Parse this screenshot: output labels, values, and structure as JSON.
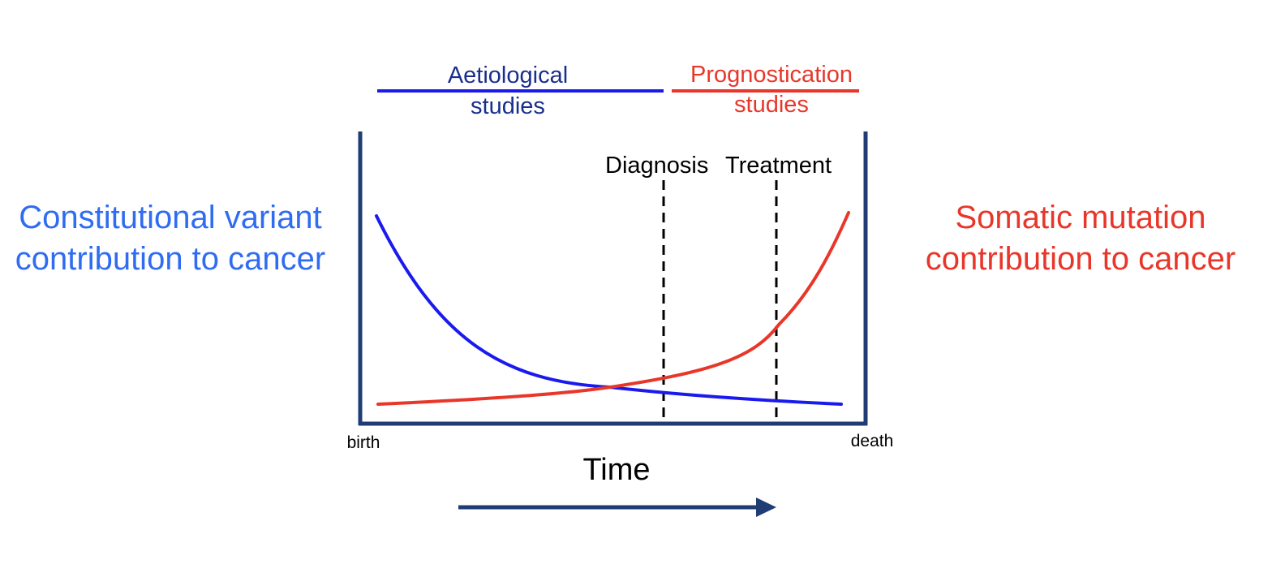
{
  "colors": {
    "blue_curve": "#1a1aee",
    "red_curve": "#e8372a",
    "blue_text": "#2f6cf2",
    "red_text": "#e8372a",
    "dark_blue": "#1f3d74",
    "navy_text": "#1a2f8c",
    "black": "#000000"
  },
  "left_label": {
    "line1": "Constitutional variant",
    "line2": "contribution to cancer"
  },
  "right_label": {
    "line1": "Somatic mutation",
    "line2": "contribution to cancer"
  },
  "bands": {
    "aetiological": {
      "line1": "Aetiological",
      "line2": "studies"
    },
    "prognostication": {
      "line1": "Prognostication",
      "line2": "studies"
    }
  },
  "events": {
    "diagnosis": "Diagnosis",
    "treatment": "Treatment"
  },
  "axis": {
    "start": "birth",
    "end": "death",
    "title": "Time"
  },
  "curves": [
    {
      "name": "constitutional",
      "shape": "decreasing",
      "color_key": "blue_curve"
    },
    {
      "name": "somatic",
      "shape": "increasing",
      "color_key": "red_curve"
    }
  ]
}
